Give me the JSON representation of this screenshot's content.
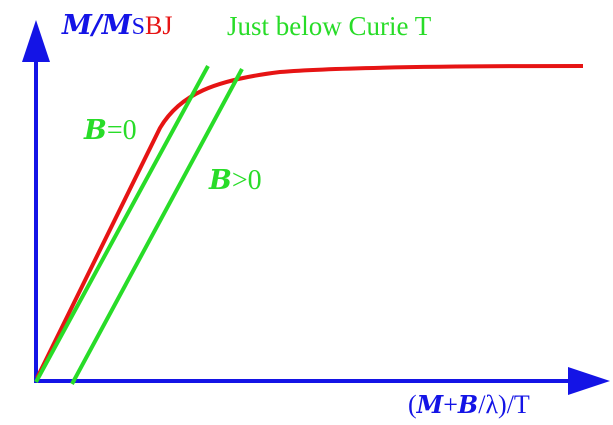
{
  "colors": {
    "axis": "#1414e6",
    "curve": "#e61414",
    "line": "#28dc28"
  },
  "labels": {
    "y_axis": {
      "m1": "M",
      "slash": "/",
      "m2": "M",
      "s": "s",
      "bj": "BJ"
    },
    "title": "Just below Curie T",
    "x_axis": {
      "open": "(",
      "m": "M",
      "plus": "+",
      "b": "B",
      "rest": "/λ)/T"
    },
    "line_b0": {
      "b": "B",
      "rest": "=0"
    },
    "line_bpos": {
      "b": "B",
      "rest": ">0"
    }
  }
}
